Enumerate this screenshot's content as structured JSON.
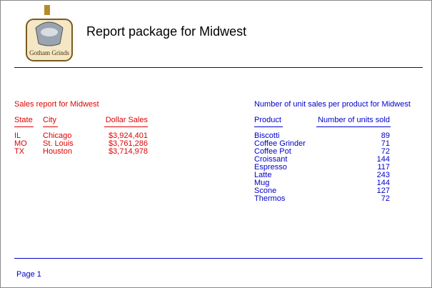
{
  "header": {
    "logo_text": "Gotham Grinds",
    "title": "Report package for Midwest"
  },
  "sales_report": {
    "title": "Sales report for Midwest",
    "columns": [
      "State",
      "City",
      "Dollar Sales"
    ],
    "rows": [
      [
        "IL",
        "Chicago",
        "$3,924,401"
      ],
      [
        "MO",
        "St. Louis",
        "$3,761,286"
      ],
      [
        "TX",
        "Houston",
        "$3,714,978"
      ]
    ]
  },
  "unit_report": {
    "title": "Number of unit sales per product for Midwest",
    "columns": [
      "Product",
      "Number of units sold"
    ],
    "rows": [
      [
        "Biscotti",
        89
      ],
      [
        "Coffee Grinder",
        71
      ],
      [
        "Coffee Pot",
        72
      ],
      [
        "Croissant",
        144
      ],
      [
        "Espresso",
        117
      ],
      [
        "Latte",
        243
      ],
      [
        "Mug",
        144
      ],
      [
        "Scone",
        127
      ],
      [
        "Thermos",
        72
      ]
    ]
  },
  "footer": {
    "page": "Page 1"
  }
}
